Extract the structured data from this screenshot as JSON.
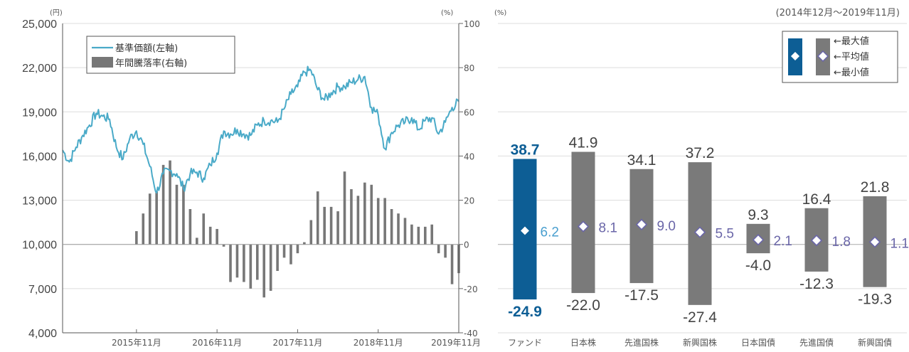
{
  "chart_data": [
    {
      "type": "line+bar",
      "left_unit": "(円)",
      "right_unit": "(%)",
      "left_ticks": [
        "25,000",
        "22,000",
        "19,000",
        "16,000",
        "13,000",
        "10,000",
        "7,000",
        "4,000"
      ],
      "left_ylim": [
        4000,
        25000
      ],
      "right_ylim": [
        -40,
        100
      ],
      "x_ticks": [
        "2015年11月",
        "2016年11月",
        "2017年11月",
        "2018年11月",
        "2019年11月"
      ],
      "legend": {
        "line_label": "基準価額(左軸)",
        "bar_label": "年間騰落率(右軸)",
        "placement": "top-left"
      },
      "colors": {
        "line": "#4aaac8",
        "bars": "#777777"
      },
      "line_series": [
        [
          "2014-12",
          16400
        ],
        [
          "2015-01",
          15600
        ],
        [
          "2015-02",
          16600
        ],
        [
          "2015-03",
          17400
        ],
        [
          "2015-04",
          18100
        ],
        [
          "2015-05",
          18900
        ],
        [
          "2015-06",
          18700
        ],
        [
          "2015-07",
          18500
        ],
        [
          "2015-08",
          16600
        ],
        [
          "2015-09",
          15800
        ],
        [
          "2015-10",
          17200
        ],
        [
          "2015-11",
          17700
        ],
        [
          "2015-12",
          16800
        ],
        [
          "2016-01",
          15300
        ],
        [
          "2016-02",
          13500
        ],
        [
          "2016-03",
          14800
        ],
        [
          "2016-04",
          15000
        ],
        [
          "2016-05",
          14800
        ],
        [
          "2016-06",
          13800
        ],
        [
          "2016-07",
          14800
        ],
        [
          "2016-08",
          14900
        ],
        [
          "2016-09",
          14500
        ],
        [
          "2016-10",
          15400
        ],
        [
          "2016-11",
          16200
        ],
        [
          "2016-12",
          17700
        ],
        [
          "2017-01",
          17500
        ],
        [
          "2017-02",
          17800
        ],
        [
          "2017-03",
          17500
        ],
        [
          "2017-04",
          17400
        ],
        [
          "2017-05",
          18100
        ],
        [
          "2017-06",
          18400
        ],
        [
          "2017-07",
          18400
        ],
        [
          "2017-08",
          18300
        ],
        [
          "2017-09",
          19200
        ],
        [
          "2017-10",
          20200
        ],
        [
          "2017-11",
          20700
        ],
        [
          "2017-12",
          21700
        ],
        [
          "2018-01",
          21800
        ],
        [
          "2018-02",
          20500
        ],
        [
          "2018-03",
          19800
        ],
        [
          "2018-04",
          20300
        ],
        [
          "2018-05",
          20700
        ],
        [
          "2018-06",
          20700
        ],
        [
          "2018-07",
          21000
        ],
        [
          "2018-08",
          21200
        ],
        [
          "2018-09",
          21400
        ],
        [
          "2018-10",
          19300
        ],
        [
          "2018-11",
          18800
        ],
        [
          "2018-12",
          16500
        ],
        [
          "2019-01",
          17600
        ],
        [
          "2019-02",
          18100
        ],
        [
          "2019-03",
          18300
        ],
        [
          "2019-04",
          18600
        ],
        [
          "2019-05",
          17800
        ],
        [
          "2019-06",
          18400
        ],
        [
          "2019-07",
          18600
        ],
        [
          "2019-08",
          17500
        ],
        [
          "2019-09",
          18300
        ],
        [
          "2019-10",
          19300
        ],
        [
          "2019-11",
          19700
        ]
      ],
      "bar_series": [
        [
          "2015-11",
          6
        ],
        [
          "2015-12",
          14
        ],
        [
          "2016-01",
          23
        ],
        [
          "2016-02",
          24
        ],
        [
          "2016-03",
          36
        ],
        [
          "2016-04",
          38
        ],
        [
          "2016-05",
          27
        ],
        [
          "2016-06",
          27
        ],
        [
          "2016-07",
          16
        ],
        [
          "2016-08",
          3
        ],
        [
          "2016-09",
          14
        ],
        [
          "2016-10",
          8
        ],
        [
          "2016-11",
          7
        ],
        [
          "2016-12",
          -1
        ],
        [
          "2017-01",
          -17
        ],
        [
          "2017-02",
          -15
        ],
        [
          "2017-03",
          -17
        ],
        [
          "2017-04",
          -20
        ],
        [
          "2017-05",
          -16
        ],
        [
          "2017-06",
          -24
        ],
        [
          "2017-07",
          -21
        ],
        [
          "2017-08",
          -12
        ],
        [
          "2017-09",
          -6
        ],
        [
          "2017-10",
          -9
        ],
        [
          "2017-11",
          -4
        ],
        [
          "2017-12",
          1
        ],
        [
          "2018-01",
          11
        ],
        [
          "2018-02",
          24
        ],
        [
          "2018-03",
          17
        ],
        [
          "2018-04",
          17
        ],
        [
          "2018-05",
          15
        ],
        [
          "2018-06",
          33
        ],
        [
          "2018-07",
          25
        ],
        [
          "2018-08",
          22
        ],
        [
          "2018-09",
          28
        ],
        [
          "2018-10",
          27
        ],
        [
          "2018-11",
          21
        ],
        [
          "2018-12",
          21
        ],
        [
          "2019-01",
          16
        ],
        [
          "2019-02",
          14
        ],
        [
          "2019-03",
          12
        ],
        [
          "2019-04",
          9
        ],
        [
          "2019-05",
          8
        ],
        [
          "2019-06",
          8
        ],
        [
          "2019-07",
          9
        ],
        [
          "2019-08",
          -4
        ],
        [
          "2019-09",
          -6
        ],
        [
          "2019-10",
          -18
        ],
        [
          "2019-11",
          -13
        ]
      ]
    },
    {
      "type": "range-bar",
      "period": "(2014年12月～2019年11月)",
      "unit": "(%)",
      "ylim": [
        -40,
        100
      ],
      "y_ticks": [
        "100",
        "80",
        "60",
        "40",
        "20",
        "0",
        "-20",
        "-40"
      ],
      "legend": {
        "max_label": "←最大値",
        "avg_label": "←平均値",
        "min_label": "←最小値",
        "placement": "top-right"
      },
      "colors": {
        "fund": "#0d5e95",
        "others": "#7a7a7a",
        "fund_text": "#0d5e95",
        "avg_text": "#6a66a8"
      },
      "categories": [
        "ファンド",
        "日本株",
        "先進国株",
        "新興国株",
        "日本国債",
        "先進国債",
        "新興国債"
      ],
      "max": [
        38.7,
        41.9,
        34.1,
        37.2,
        9.3,
        16.4,
        21.8
      ],
      "avg": [
        6.2,
        8.1,
        9.0,
        5.5,
        2.1,
        1.8,
        1.1
      ],
      "min": [
        -24.9,
        -22.0,
        -17.5,
        -27.4,
        -4.0,
        -12.3,
        -19.3
      ],
      "max_labels": [
        "38.7",
        "41.9",
        "34.1",
        "37.2",
        "9.3",
        "16.4",
        "21.8"
      ],
      "avg_labels": [
        "6.2",
        "8.1",
        "9.0",
        "5.5",
        "2.1",
        "1.8",
        "1.1"
      ],
      "min_labels": [
        "-24.9",
        "-22.0",
        "-17.5",
        "-27.4",
        "-4.0",
        "-12.3",
        "-19.3"
      ]
    }
  ]
}
